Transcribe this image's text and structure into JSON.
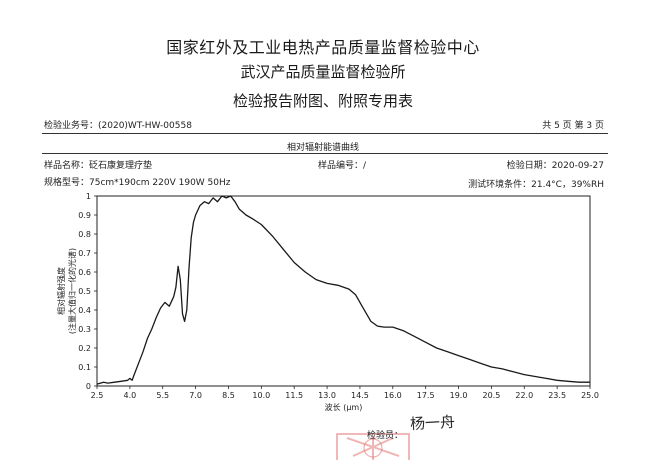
{
  "header": {
    "line1": "国家红外及工业电热产品质量监督检验中心",
    "line2": "武汉产品质量监督检验所",
    "line3": "检验报告附图、附照专用表"
  },
  "report": {
    "business_no": "检验业务号：(2020)WT-HW-00558",
    "page_info": "共 5 页 第 3 页"
  },
  "chart_title": "相对辐射能谱曲线",
  "sample": {
    "name": "样品名称：砭石康复理疗垫",
    "number": "样品编号：/",
    "date": "检验日期：2020-09-27",
    "spec": "规格型号：75cm*190cm  220V 190W 50Hz",
    "environment": "测试环境条件：21.4°C，39%RH"
  },
  "footer": {
    "inspector_label": "检验员：",
    "signature": "杨一舟"
  },
  "chart_data": {
    "type": "line",
    "xlabel": "波长 (μm)",
    "ylabel": "相对辐射强度\n(注量大值归一化的光谱)",
    "xlim": [
      2.5,
      25.0
    ],
    "ylim": [
      0,
      1
    ],
    "x_ticks": [
      "2.5",
      "4.0",
      "5.5",
      "7.0",
      "8.5",
      "10.0",
      "11.5",
      "13.0",
      "14.5",
      "16.0",
      "17.5",
      "19.0",
      "20.5",
      "22.0",
      "23.5",
      "25.0"
    ],
    "y_ticks": [
      "0",
      "0.1",
      "0.2",
      "0.3",
      "0.4",
      "0.5",
      "0.6",
      "0.7",
      "0.8",
      "0.9",
      "1"
    ],
    "grid": false,
    "series": [
      {
        "color": "#1a1a1a",
        "x": [
          2.5,
          2.8,
          3.0,
          3.3,
          3.6,
          3.9,
          4.0,
          4.1,
          4.2,
          4.4,
          4.6,
          4.8,
          5.0,
          5.2,
          5.4,
          5.6,
          5.8,
          6.0,
          6.1,
          6.2,
          6.3,
          6.4,
          6.5,
          6.6,
          6.7,
          6.8,
          6.9,
          7.0,
          7.2,
          7.4,
          7.6,
          7.8,
          8.0,
          8.2,
          8.4,
          8.6,
          8.8,
          9.0,
          9.3,
          9.6,
          10.0,
          10.5,
          11.0,
          11.5,
          12.0,
          12.5,
          13.0,
          13.5,
          14.0,
          14.3,
          14.6,
          15.0,
          15.3,
          15.6,
          16.0,
          16.5,
          17.0,
          17.5,
          18.0,
          18.5,
          19.0,
          19.5,
          20.0,
          20.5,
          21.0,
          21.5,
          22.0,
          22.5,
          23.0,
          23.5,
          24.0,
          24.5,
          25.0
        ],
        "y": [
          0.01,
          0.02,
          0.015,
          0.02,
          0.025,
          0.03,
          0.04,
          0.03,
          0.06,
          0.12,
          0.18,
          0.25,
          0.3,
          0.36,
          0.41,
          0.44,
          0.42,
          0.47,
          0.52,
          0.63,
          0.56,
          0.38,
          0.34,
          0.4,
          0.62,
          0.78,
          0.86,
          0.9,
          0.95,
          0.97,
          0.96,
          0.99,
          0.97,
          1.0,
          0.99,
          1.0,
          0.97,
          0.93,
          0.9,
          0.88,
          0.85,
          0.79,
          0.72,
          0.65,
          0.6,
          0.56,
          0.54,
          0.53,
          0.51,
          0.48,
          0.42,
          0.34,
          0.315,
          0.31,
          0.31,
          0.29,
          0.26,
          0.23,
          0.2,
          0.18,
          0.16,
          0.14,
          0.12,
          0.1,
          0.09,
          0.075,
          0.06,
          0.05,
          0.04,
          0.03,
          0.025,
          0.02,
          0.02
        ]
      }
    ]
  },
  "colors": {
    "ink": "#1a1a1a",
    "stamp": "#e06060"
  }
}
